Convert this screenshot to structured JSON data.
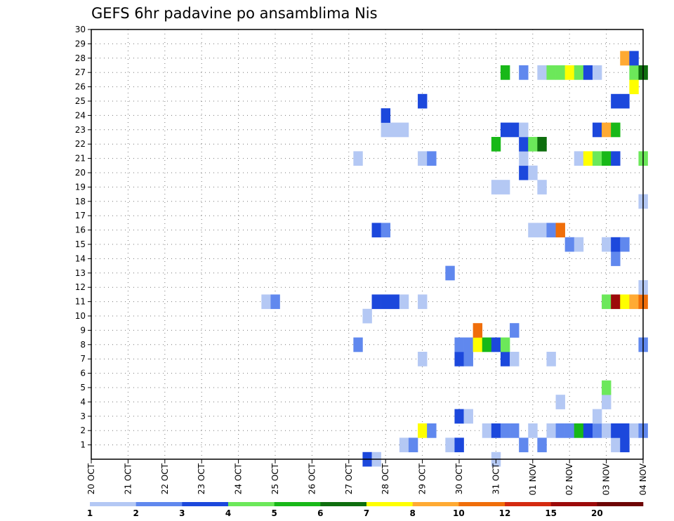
{
  "chart_data": {
    "type": "heatmap",
    "title": "GEFS 6hr padavine po ansamblima Nis",
    "xlabel": "",
    "ylabel": "",
    "grid": true,
    "x_ticks": [
      "20 OCT",
      "21 OCT",
      "22 OCT",
      "23 OCT",
      "24 OCT",
      "25 OCT",
      "26 OCT",
      "27 OCT",
      "28 OCT",
      "29 OCT",
      "30 OCT",
      "31 OCT",
      "01 NOV",
      "02 NOV",
      "03 NOV",
      "04 NOV"
    ],
    "y_range": [
      0,
      30
    ],
    "y_ticks": [
      1,
      2,
      3,
      4,
      5,
      6,
      7,
      8,
      9,
      10,
      11,
      12,
      13,
      14,
      15,
      16,
      17,
      18,
      19,
      20,
      21,
      22,
      23,
      24,
      25,
      26,
      27,
      28,
      29,
      30
    ],
    "x_range_steps": [
      0,
      60
    ],
    "colorbar": {
      "levels": [
        "1",
        "2",
        "3",
        "4",
        "5",
        "6",
        "7",
        "8",
        "10",
        "12",
        "15",
        "20"
      ],
      "colors": [
        "#b4c8f4",
        "#6088ee",
        "#1c48dc",
        "#6ce85a",
        "#18b818",
        "#0e6e0e",
        "#ffff00",
        "#ffaa33",
        "#f06e0a",
        "#d42a10",
        "#9c0a0a",
        "#6e0505"
      ]
    },
    "cells": [
      {
        "x": 30,
        "y": 0,
        "c": 2
      },
      {
        "x": 31,
        "y": 0,
        "c": 0
      },
      {
        "x": 44,
        "y": 0,
        "c": 0
      },
      {
        "x": 34,
        "y": 1,
        "c": 0
      },
      {
        "x": 35,
        "y": 1,
        "c": 1
      },
      {
        "x": 39,
        "y": 1,
        "c": 0
      },
      {
        "x": 40,
        "y": 1,
        "c": 2
      },
      {
        "x": 47,
        "y": 1,
        "c": 1
      },
      {
        "x": 49,
        "y": 1,
        "c": 1
      },
      {
        "x": 57,
        "y": 1,
        "c": 0
      },
      {
        "x": 58,
        "y": 1,
        "c": 2
      },
      {
        "x": 36,
        "y": 2,
        "c": 6
      },
      {
        "x": 37,
        "y": 2,
        "c": 1
      },
      {
        "x": 43,
        "y": 2,
        "c": 0
      },
      {
        "x": 44,
        "y": 2,
        "c": 2
      },
      {
        "x": 45,
        "y": 2,
        "c": 1
      },
      {
        "x": 46,
        "y": 2,
        "c": 1
      },
      {
        "x": 48,
        "y": 2,
        "c": 0
      },
      {
        "x": 50,
        "y": 2,
        "c": 0
      },
      {
        "x": 51,
        "y": 2,
        "c": 1
      },
      {
        "x": 52,
        "y": 2,
        "c": 1
      },
      {
        "x": 53,
        "y": 2,
        "c": 4
      },
      {
        "x": 54,
        "y": 2,
        "c": 2
      },
      {
        "x": 55,
        "y": 2,
        "c": 1
      },
      {
        "x": 56,
        "y": 2,
        "c": 0
      },
      {
        "x": 57,
        "y": 2,
        "c": 2
      },
      {
        "x": 58,
        "y": 2,
        "c": 2
      },
      {
        "x": 59,
        "y": 2,
        "c": 0
      },
      {
        "x": 60,
        "y": 2,
        "c": 1
      },
      {
        "x": 40,
        "y": 3,
        "c": 2
      },
      {
        "x": 41,
        "y": 3,
        "c": 0
      },
      {
        "x": 55,
        "y": 3,
        "c": 0
      },
      {
        "x": 51,
        "y": 4,
        "c": 0
      },
      {
        "x": 56,
        "y": 4,
        "c": 0
      },
      {
        "x": 56,
        "y": 5,
        "c": 3
      },
      {
        "x": 36,
        "y": 7,
        "c": 0
      },
      {
        "x": 40,
        "y": 7,
        "c": 2
      },
      {
        "x": 41,
        "y": 7,
        "c": 1
      },
      {
        "x": 45,
        "y": 7,
        "c": 2
      },
      {
        "x": 46,
        "y": 7,
        "c": 0
      },
      {
        "x": 50,
        "y": 7,
        "c": 0
      },
      {
        "x": 29,
        "y": 8,
        "c": 1
      },
      {
        "x": 40,
        "y": 8,
        "c": 1
      },
      {
        "x": 41,
        "y": 8,
        "c": 1
      },
      {
        "x": 42,
        "y": 8,
        "c": 6
      },
      {
        "x": 43,
        "y": 8,
        "c": 4
      },
      {
        "x": 44,
        "y": 8,
        "c": 2
      },
      {
        "x": 45,
        "y": 8,
        "c": 3
      },
      {
        "x": 60,
        "y": 8,
        "c": 1
      },
      {
        "x": 42,
        "y": 9,
        "c": 8
      },
      {
        "x": 46,
        "y": 9,
        "c": 1
      },
      {
        "x": 30,
        "y": 10,
        "c": 0
      },
      {
        "x": 19,
        "y": 11,
        "c": 0
      },
      {
        "x": 20,
        "y": 11,
        "c": 1
      },
      {
        "x": 31,
        "y": 11,
        "c": 2
      },
      {
        "x": 32,
        "y": 11,
        "c": 2
      },
      {
        "x": 33,
        "y": 11,
        "c": 2
      },
      {
        "x": 34,
        "y": 11,
        "c": 0
      },
      {
        "x": 36,
        "y": 11,
        "c": 0
      },
      {
        "x": 56,
        "y": 11,
        "c": 3
      },
      {
        "x": 57,
        "y": 11,
        "c": 10
      },
      {
        "x": 58,
        "y": 11,
        "c": 6
      },
      {
        "x": 59,
        "y": 11,
        "c": 7
      },
      {
        "x": 60,
        "y": 11,
        "c": 8
      },
      {
        "x": 60,
        "y": 12,
        "c": 0
      },
      {
        "x": 39,
        "y": 13,
        "c": 1
      },
      {
        "x": 57,
        "y": 14,
        "c": 1
      },
      {
        "x": 52,
        "y": 15,
        "c": 1
      },
      {
        "x": 53,
        "y": 15,
        "c": 0
      },
      {
        "x": 56,
        "y": 15,
        "c": 0
      },
      {
        "x": 57,
        "y": 15,
        "c": 2
      },
      {
        "x": 58,
        "y": 15,
        "c": 1
      },
      {
        "x": 31,
        "y": 16,
        "c": 2
      },
      {
        "x": 32,
        "y": 16,
        "c": 1
      },
      {
        "x": 48,
        "y": 16,
        "c": 0
      },
      {
        "x": 49,
        "y": 16,
        "c": 0
      },
      {
        "x": 50,
        "y": 16,
        "c": 1
      },
      {
        "x": 51,
        "y": 16,
        "c": 8
      },
      {
        "x": 60,
        "y": 18,
        "c": 0
      },
      {
        "x": 44,
        "y": 19,
        "c": 0
      },
      {
        "x": 45,
        "y": 19,
        "c": 0
      },
      {
        "x": 49,
        "y": 19,
        "c": 0
      },
      {
        "x": 47,
        "y": 20,
        "c": 2
      },
      {
        "x": 48,
        "y": 20,
        "c": 0
      },
      {
        "x": 47,
        "y": 21,
        "c": 0
      },
      {
        "x": 29,
        "y": 21,
        "c": 0
      },
      {
        "x": 36,
        "y": 21,
        "c": 0
      },
      {
        "x": 37,
        "y": 21,
        "c": 1
      },
      {
        "x": 53,
        "y": 21,
        "c": 0
      },
      {
        "x": 54,
        "y": 21,
        "c": 6
      },
      {
        "x": 55,
        "y": 21,
        "c": 3
      },
      {
        "x": 56,
        "y": 21,
        "c": 4
      },
      {
        "x": 57,
        "y": 21,
        "c": 2
      },
      {
        "x": 60,
        "y": 21,
        "c": 3
      },
      {
        "x": 44,
        "y": 22,
        "c": 4
      },
      {
        "x": 47,
        "y": 22,
        "c": 2
      },
      {
        "x": 48,
        "y": 22,
        "c": 3
      },
      {
        "x": 49,
        "y": 22,
        "c": 5
      },
      {
        "x": 32,
        "y": 23,
        "c": 0
      },
      {
        "x": 33,
        "y": 23,
        "c": 0
      },
      {
        "x": 34,
        "y": 23,
        "c": 0
      },
      {
        "x": 45,
        "y": 23,
        "c": 2
      },
      {
        "x": 46,
        "y": 23,
        "c": 2
      },
      {
        "x": 47,
        "y": 23,
        "c": 0
      },
      {
        "x": 55,
        "y": 23,
        "c": 2
      },
      {
        "x": 56,
        "y": 23,
        "c": 7
      },
      {
        "x": 57,
        "y": 23,
        "c": 4
      },
      {
        "x": 32,
        "y": 24,
        "c": 2
      },
      {
        "x": 36,
        "y": 25,
        "c": 2
      },
      {
        "x": 57,
        "y": 25,
        "c": 2
      },
      {
        "x": 58,
        "y": 25,
        "c": 2
      },
      {
        "x": 59,
        "y": 26,
        "c": 6
      },
      {
        "x": 45,
        "y": 27,
        "c": 4
      },
      {
        "x": 47,
        "y": 27,
        "c": 1
      },
      {
        "x": 49,
        "y": 27,
        "c": 0
      },
      {
        "x": 50,
        "y": 27,
        "c": 3
      },
      {
        "x": 51,
        "y": 27,
        "c": 3
      },
      {
        "x": 52,
        "y": 27,
        "c": 6
      },
      {
        "x": 53,
        "y": 27,
        "c": 3
      },
      {
        "x": 54,
        "y": 27,
        "c": 2
      },
      {
        "x": 55,
        "y": 27,
        "c": 0
      },
      {
        "x": 59,
        "y": 27,
        "c": 3
      },
      {
        "x": 60,
        "y": 27,
        "c": 5
      },
      {
        "x": 58,
        "y": 28,
        "c": 7
      },
      {
        "x": 59,
        "y": 28,
        "c": 2
      }
    ]
  }
}
